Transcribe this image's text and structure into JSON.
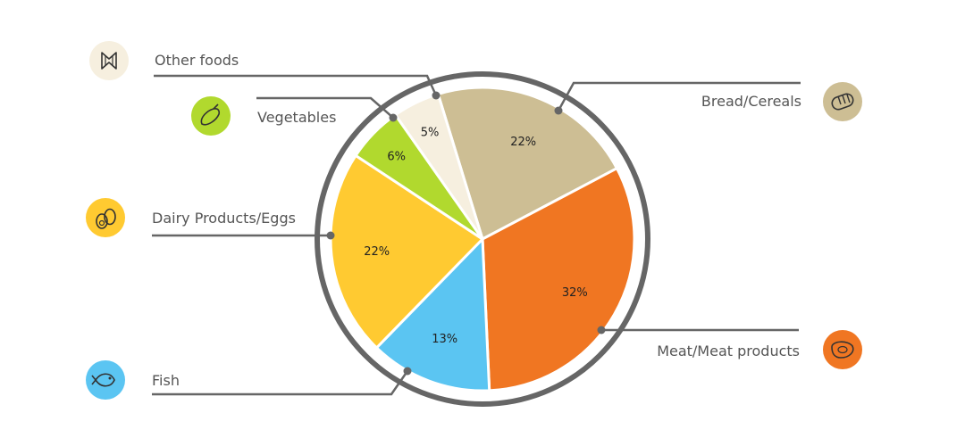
{
  "chart_data": {
    "type": "pie",
    "title": "",
    "slices": [
      {
        "label": "Bread/Cereals",
        "value": 22,
        "value_label": "22%",
        "color": "#CDBE94",
        "icon": "bread-icon"
      },
      {
        "label": "Meat/Meat products",
        "value": 32,
        "value_label": "32%",
        "color": "#F07622",
        "icon": "steak-icon"
      },
      {
        "label": "Fish",
        "value": 13,
        "value_label": "13%",
        "color": "#5BC5F2",
        "icon": "fish-icon"
      },
      {
        "label": "Dairy Products/Eggs",
        "value": 22,
        "value_label": "22%",
        "color": "#FFCA31",
        "icon": "eggs-icon"
      },
      {
        "label": "Vegetables",
        "value": 6,
        "value_label": "6%",
        "color": "#B1D92E",
        "icon": "eggplant-icon"
      },
      {
        "label": "Other foods",
        "value": 5,
        "value_label": "5%",
        "color": "#F6EFDF",
        "icon": "pasta-icon"
      }
    ],
    "colors": {
      "ring": "#666666",
      "leader": "#666666",
      "slice_border": "#ffffff"
    }
  }
}
